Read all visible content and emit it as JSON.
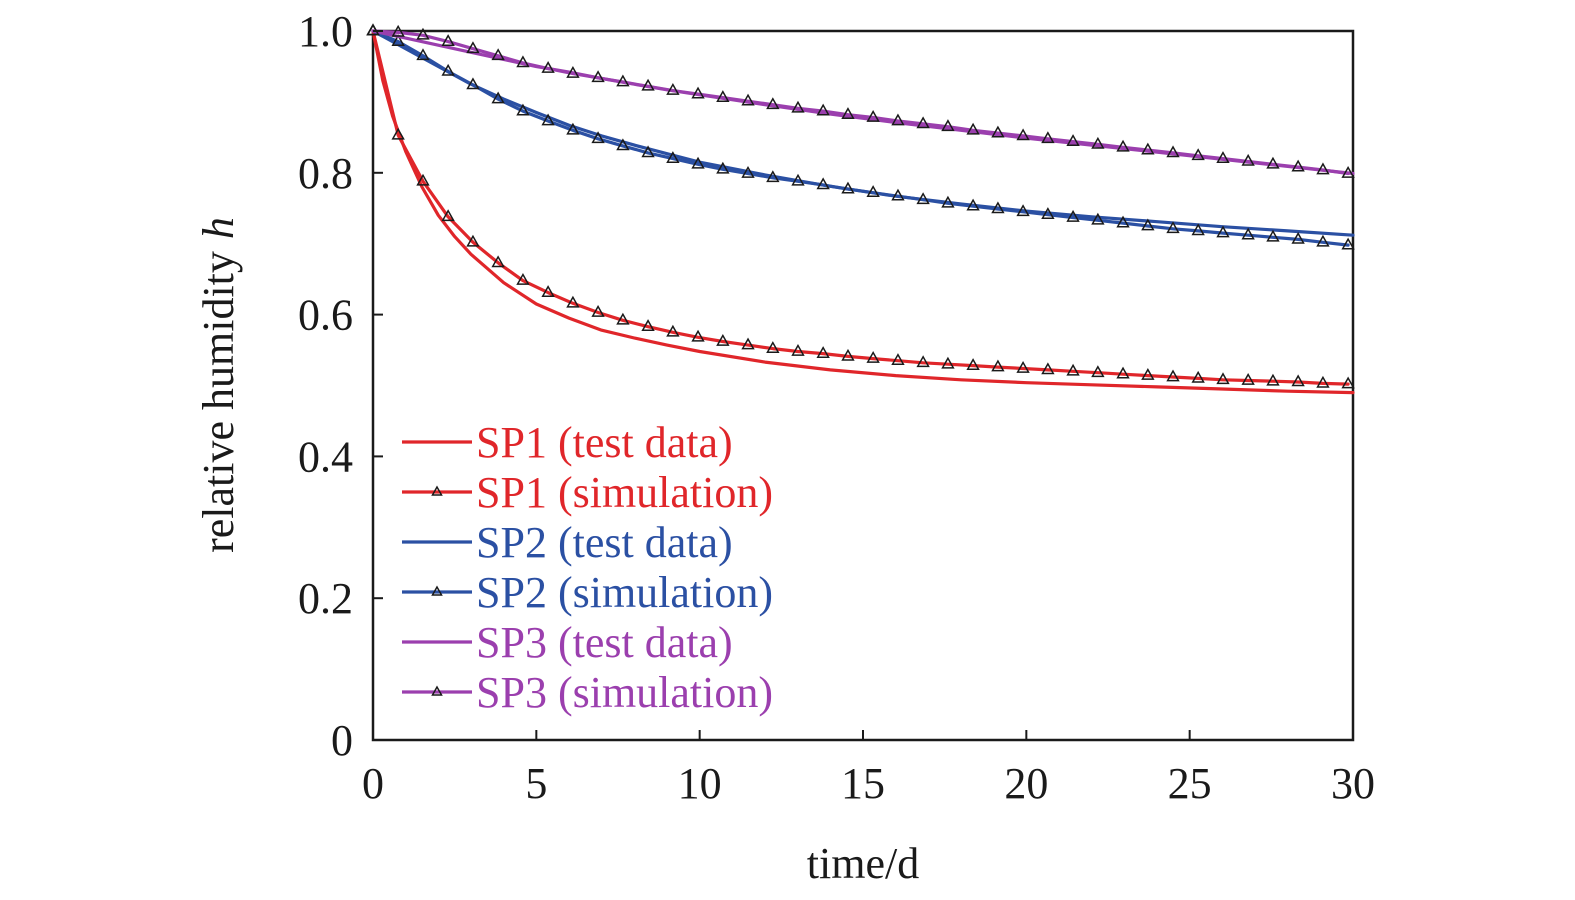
{
  "chart_data": {
    "type": "line",
    "xlabel": "time/d",
    "ylabel": "relative humidity",
    "ylabel_italic_suffix": "h",
    "xlim": [
      0,
      30
    ],
    "ylim": [
      0,
      1.0
    ],
    "xticks": [
      0,
      5,
      10,
      15,
      20,
      25,
      30
    ],
    "xtick_labels": [
      "0",
      "5",
      "10",
      "15",
      "20",
      "25",
      "30"
    ],
    "yticks": [
      0,
      0.2,
      0.4,
      0.6,
      0.8,
      1.0
    ],
    "ytick_labels": [
      "0",
      "0.2",
      "0.4",
      "0.6",
      "0.8",
      "1.0"
    ],
    "grid": false,
    "legend_position": "bottom-left",
    "marker_color": "#1a1a1a",
    "series": [
      {
        "name": "SP1 (test data)",
        "color": "#e0262a",
        "marker": "none",
        "x": [
          0,
          0.3,
          0.6,
          1,
          1.5,
          2,
          2.5,
          3,
          4,
          5,
          6,
          7,
          8,
          9,
          10,
          12,
          14,
          16,
          18,
          20,
          22,
          24,
          26,
          28,
          30
        ],
        "y": [
          1.0,
          0.93,
          0.88,
          0.83,
          0.78,
          0.74,
          0.71,
          0.685,
          0.645,
          0.615,
          0.595,
          0.578,
          0.567,
          0.557,
          0.548,
          0.533,
          0.522,
          0.514,
          0.508,
          0.504,
          0.501,
          0.498,
          0.495,
          0.492,
          0.49
        ]
      },
      {
        "name": "SP1 (simulation)",
        "color": "#e0262a",
        "marker": "triangle",
        "x": [
          0,
          0.77,
          1.53,
          2.3,
          3.06,
          3.83,
          4.59,
          5.36,
          6.12,
          6.89,
          7.65,
          8.42,
          9.18,
          9.95,
          10.71,
          11.48,
          12.24,
          13.01,
          13.78,
          14.54,
          15.31,
          16.07,
          16.84,
          17.6,
          18.37,
          19.13,
          19.9,
          20.66,
          21.43,
          22.19,
          22.96,
          23.72,
          24.49,
          25.26,
          26.02,
          26.79,
          27.55,
          28.32,
          29.08,
          29.85
        ],
        "y": [
          1.0,
          0.853,
          0.788,
          0.738,
          0.702,
          0.673,
          0.648,
          0.631,
          0.616,
          0.603,
          0.592,
          0.583,
          0.575,
          0.568,
          0.562,
          0.557,
          0.552,
          0.548,
          0.545,
          0.541,
          0.538,
          0.535,
          0.532,
          0.53,
          0.528,
          0.526,
          0.524,
          0.522,
          0.52,
          0.518,
          0.516,
          0.514,
          0.512,
          0.51,
          0.508,
          0.507,
          0.506,
          0.505,
          0.503,
          0.502
        ]
      },
      {
        "name": "SP2 (test data)",
        "color": "#2b50a3",
        "marker": "none",
        "x": [
          0,
          1,
          2,
          3,
          4,
          5,
          6,
          7,
          8,
          9,
          10,
          12,
          14,
          16,
          18,
          20,
          22,
          24,
          26,
          28,
          30
        ],
        "y": [
          1.0,
          0.975,
          0.95,
          0.925,
          0.904,
          0.885,
          0.867,
          0.852,
          0.839,
          0.827,
          0.815,
          0.797,
          0.781,
          0.767,
          0.756,
          0.746,
          0.738,
          0.731,
          0.724,
          0.718,
          0.712
        ]
      },
      {
        "name": "SP2 (simulation)",
        "color": "#2b50a3",
        "marker": "triangle",
        "x": [
          0,
          0.77,
          1.53,
          2.3,
          3.06,
          3.83,
          4.59,
          5.36,
          6.12,
          6.89,
          7.65,
          8.42,
          9.18,
          9.95,
          10.71,
          11.48,
          12.24,
          13.01,
          13.78,
          14.54,
          15.31,
          16.07,
          16.84,
          17.6,
          18.37,
          19.13,
          19.9,
          20.66,
          21.43,
          22.19,
          22.96,
          23.72,
          24.49,
          25.26,
          26.02,
          26.79,
          27.55,
          28.32,
          29.08,
          29.85
        ],
        "y": [
          1.0,
          0.985,
          0.965,
          0.943,
          0.924,
          0.904,
          0.887,
          0.873,
          0.86,
          0.848,
          0.838,
          0.828,
          0.82,
          0.812,
          0.805,
          0.799,
          0.793,
          0.788,
          0.783,
          0.777,
          0.772,
          0.767,
          0.762,
          0.757,
          0.753,
          0.749,
          0.745,
          0.741,
          0.737,
          0.733,
          0.729,
          0.725,
          0.721,
          0.718,
          0.715,
          0.712,
          0.709,
          0.706,
          0.702,
          0.698
        ]
      },
      {
        "name": "SP3 (test data)",
        "color": "#9b3fae",
        "marker": "none",
        "x": [
          0,
          1,
          2,
          3,
          4,
          5,
          6,
          7,
          8,
          9,
          10,
          12,
          14,
          16,
          18,
          20,
          22,
          24,
          26,
          28,
          30
        ],
        "y": [
          1.0,
          0.99,
          0.98,
          0.97,
          0.96,
          0.95,
          0.942,
          0.933,
          0.925,
          0.917,
          0.91,
          0.896,
          0.883,
          0.871,
          0.86,
          0.849,
          0.839,
          0.829,
          0.819,
          0.809,
          0.799
        ]
      },
      {
        "name": "SP3 (simulation)",
        "color": "#9b3fae",
        "marker": "triangle",
        "x": [
          0,
          0.77,
          1.53,
          2.3,
          3.06,
          3.83,
          4.59,
          5.36,
          6.12,
          6.89,
          7.65,
          8.42,
          9.18,
          9.95,
          10.71,
          11.48,
          12.24,
          13.01,
          13.78,
          14.54,
          15.31,
          16.07,
          16.84,
          17.6,
          18.37,
          19.13,
          19.9,
          20.66,
          21.43,
          22.19,
          22.96,
          23.72,
          24.49,
          25.26,
          26.02,
          26.79,
          27.55,
          28.32,
          29.08,
          29.85
        ],
        "y": [
          1.0,
          0.998,
          0.994,
          0.985,
          0.975,
          0.965,
          0.955,
          0.947,
          0.94,
          0.934,
          0.928,
          0.922,
          0.916,
          0.911,
          0.906,
          0.901,
          0.896,
          0.891,
          0.887,
          0.882,
          0.878,
          0.873,
          0.869,
          0.865,
          0.86,
          0.856,
          0.852,
          0.848,
          0.844,
          0.84,
          0.836,
          0.832,
          0.828,
          0.824,
          0.82,
          0.816,
          0.812,
          0.808,
          0.804,
          0.799
        ]
      }
    ]
  }
}
